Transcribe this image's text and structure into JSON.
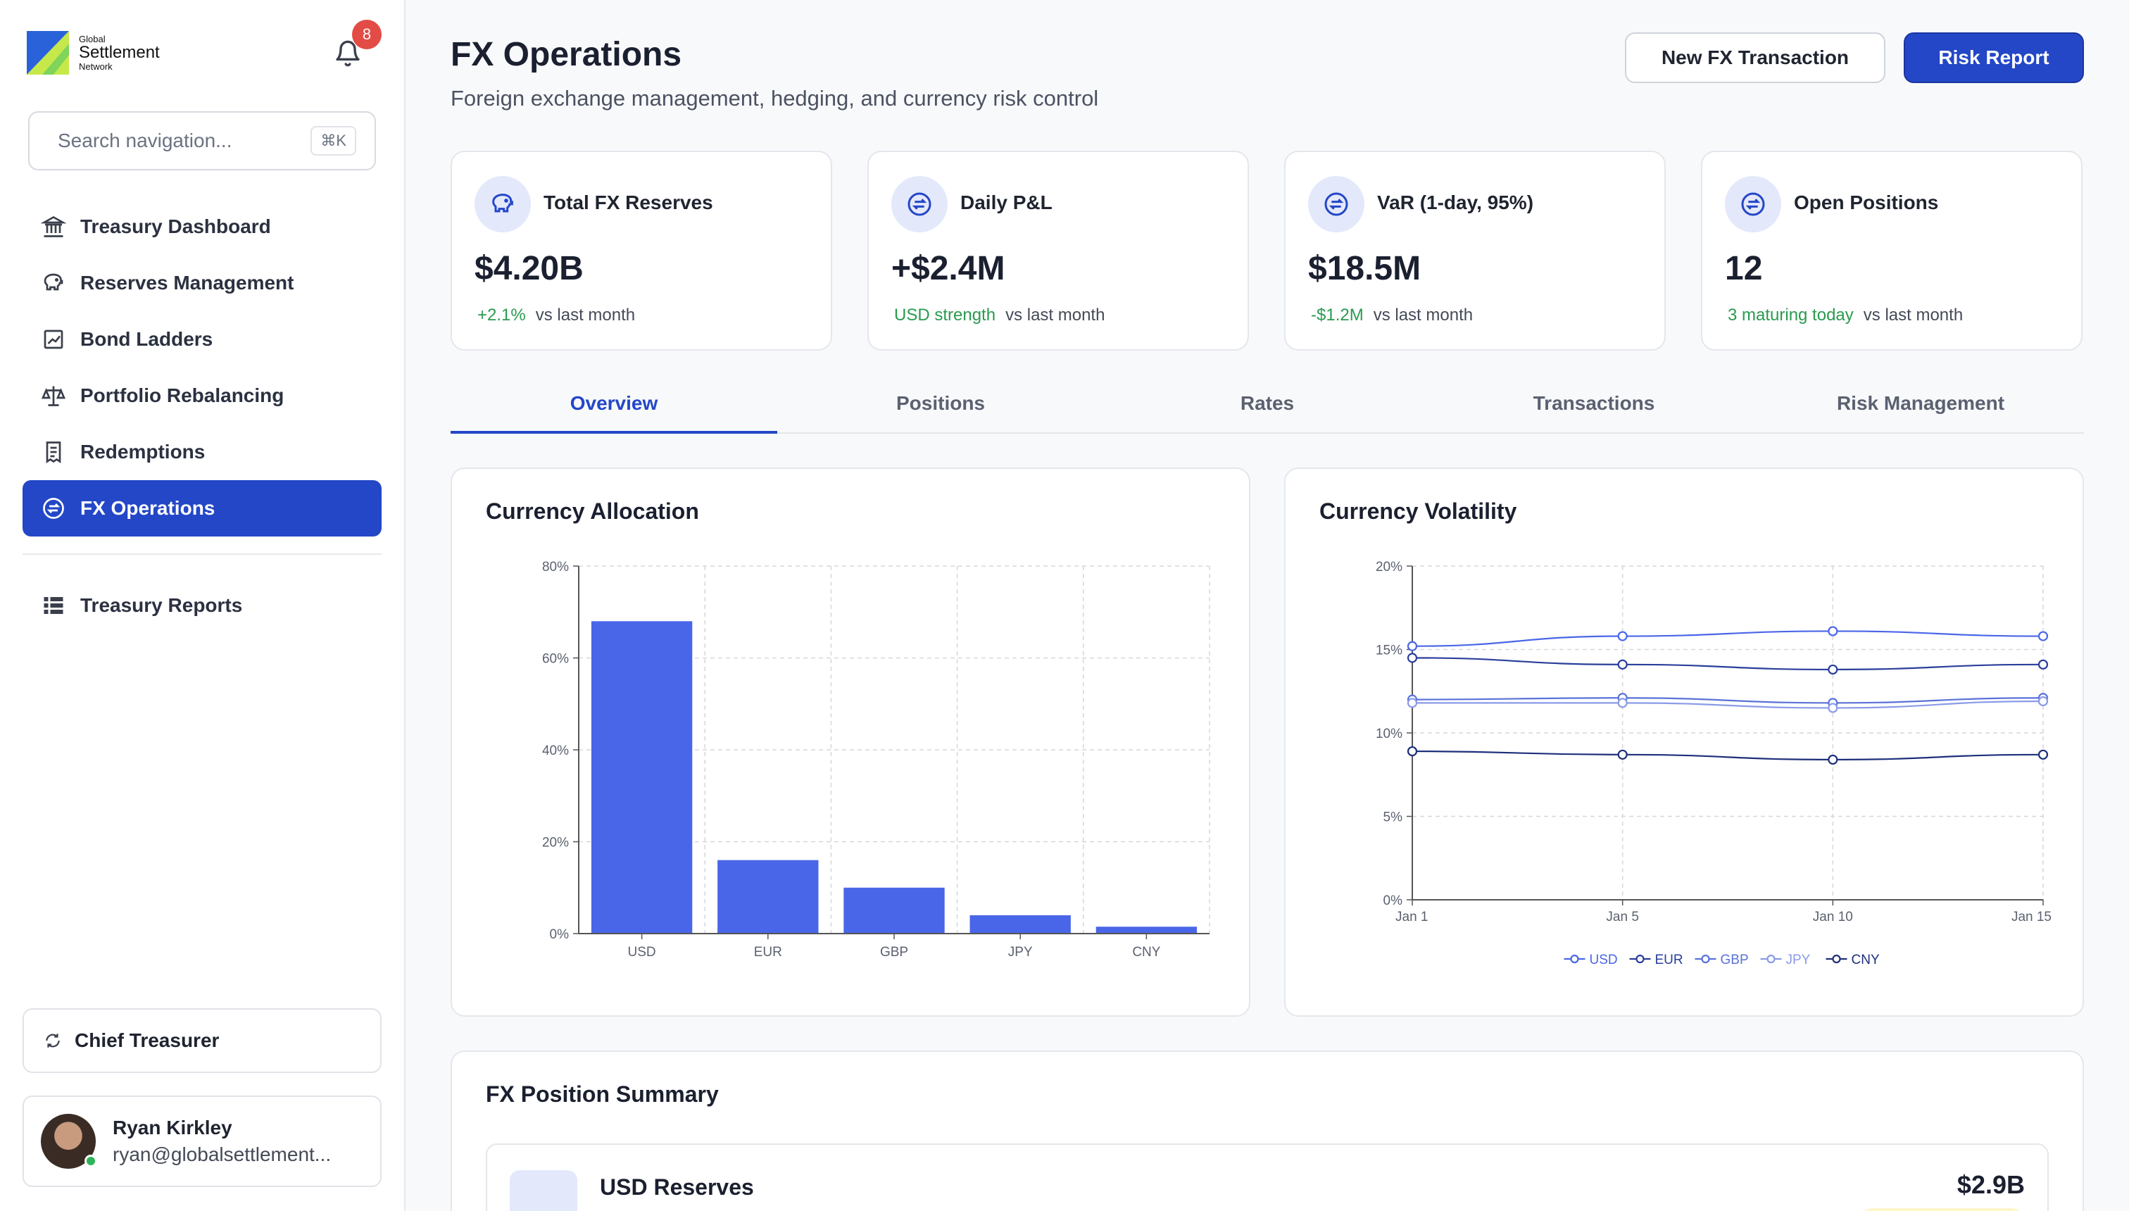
{
  "brand": {
    "line1": "Global",
    "line2": "Settlement",
    "line3": "Network"
  },
  "notifications": {
    "count": "8"
  },
  "search": {
    "placeholder": "Search navigation...",
    "shortcut": "⌘K"
  },
  "nav": {
    "items": [
      {
        "label": "Treasury Dashboard",
        "icon": "bank-icon"
      },
      {
        "label": "Reserves Management",
        "icon": "piggy-bank-icon"
      },
      {
        "label": "Bond Ladders",
        "icon": "chart-square-icon"
      },
      {
        "label": "Portfolio Rebalancing",
        "icon": "scale-icon"
      },
      {
        "label": "Redemptions",
        "icon": "receipt-icon"
      },
      {
        "label": "FX Operations",
        "icon": "exchange-circle-icon",
        "active": true
      }
    ],
    "secondary": [
      {
        "label": "Treasury Reports",
        "icon": "list-icon"
      }
    ]
  },
  "role": {
    "label": "Chief Treasurer"
  },
  "user": {
    "name": "Ryan Kirkley",
    "email": "ryan@globalsettlement..."
  },
  "header": {
    "title": "FX Operations",
    "subtitle": "Foreign exchange management, hedging, and currency risk control",
    "btn_new": "New FX Transaction",
    "btn_report": "Risk Report"
  },
  "kpis": [
    {
      "label": "Total FX Reserves",
      "value": "$4.20B",
      "delta": "+2.1%",
      "note": "vs last month",
      "icon": "piggy-bank-icon"
    },
    {
      "label": "Daily P&L",
      "value": "+$2.4M",
      "delta": "USD strength",
      "note": "vs last month",
      "icon": "exchange-circle-icon"
    },
    {
      "label": "VaR (1-day, 95%)",
      "value": "$18.5M",
      "delta": "-$1.2M",
      "note": "vs last month",
      "icon": "exchange-circle-icon"
    },
    {
      "label": "Open Positions",
      "value": "12",
      "delta": "3 maturing today",
      "note": "vs last month",
      "icon": "exchange-circle-icon"
    }
  ],
  "tabs": [
    "Overview",
    "Positions",
    "Rates",
    "Transactions",
    "Risk Management"
  ],
  "active_tab": "Overview",
  "colors": {
    "accent": "#2347c7",
    "bar": "#4a66e8",
    "positive": "#2a9a4e"
  },
  "chart_data": [
    {
      "type": "bar",
      "title": "Currency Allocation",
      "categories": [
        "USD",
        "EUR",
        "GBP",
        "JPY",
        "CNY"
      ],
      "values": [
        68,
        16,
        10,
        4,
        1.5
      ],
      "ylim": [
        0,
        80
      ],
      "yticks": [
        "0%",
        "20%",
        "40%",
        "60%",
        "80%"
      ],
      "grid": true
    },
    {
      "type": "line",
      "title": "Currency Volatility",
      "x": [
        "Jan 1",
        "Jan 5",
        "Jan 10",
        "Jan 15"
      ],
      "ylim": [
        0,
        20
      ],
      "yticks": [
        "0%",
        "5%",
        "10%",
        "15%",
        "20%"
      ],
      "grid": true,
      "legend_position": "bottom",
      "series": [
        {
          "name": "USD",
          "values": [
            15.2,
            15.8,
            16.1,
            15.8
          ],
          "color": "#4a66e8"
        },
        {
          "name": "EUR",
          "values": [
            14.5,
            14.1,
            13.8,
            14.1
          ],
          "color": "#2a3f9a"
        },
        {
          "name": "GBP",
          "values": [
            12.0,
            12.1,
            11.8,
            12.1
          ],
          "color": "#5a72d8"
        },
        {
          "name": "JPY",
          "values": [
            11.8,
            11.8,
            11.5,
            11.9
          ],
          "color": "#8a9be8"
        },
        {
          "name": "CNY",
          "values": [
            8.9,
            8.7,
            8.4,
            8.7
          ],
          "color": "#1e2f7a"
        }
      ]
    }
  ],
  "position_summary": {
    "title": "FX Position Summary",
    "rows": [
      {
        "code": "USD",
        "name": "USD Reserves",
        "amount": "$2.9B"
      }
    ]
  }
}
